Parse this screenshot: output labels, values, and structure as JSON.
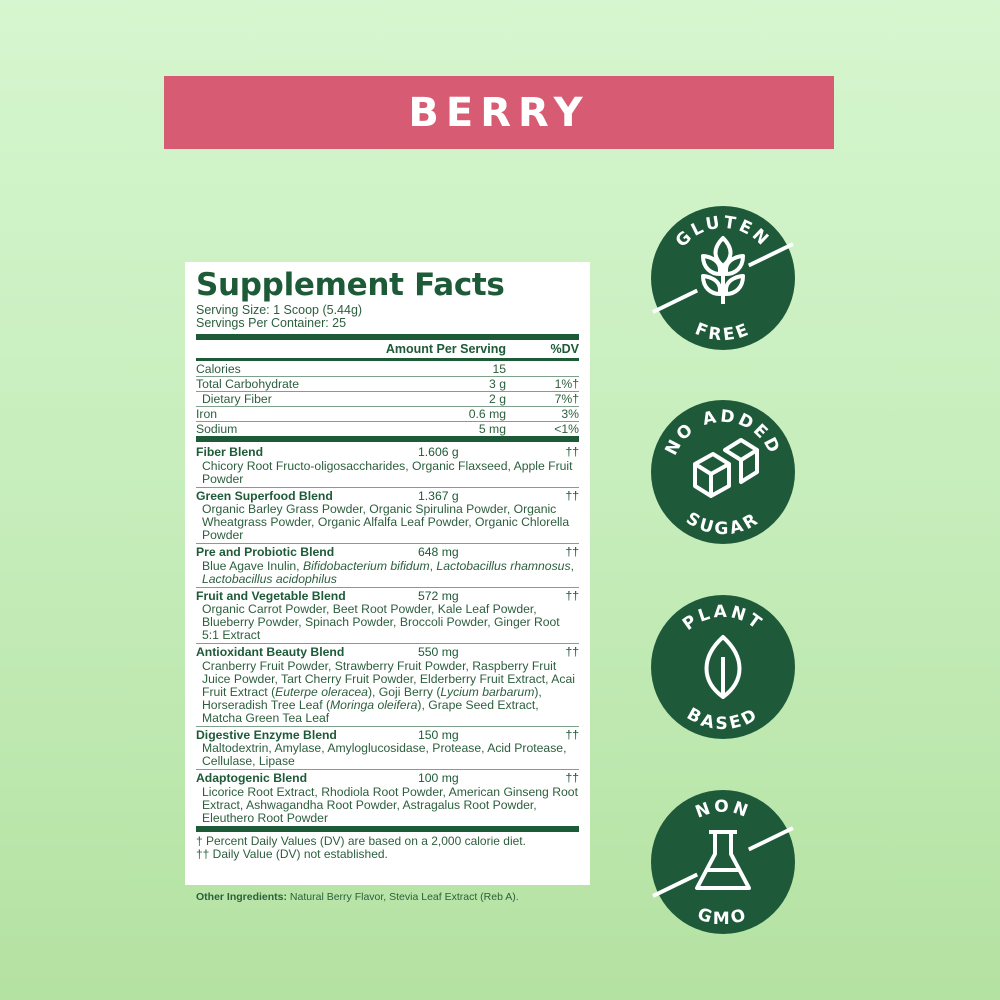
{
  "banner": {
    "flavor": "BERRY",
    "color": "#d75b72"
  },
  "facts": {
    "title": "Supplement Facts",
    "serving_size": "Serving Size: 1 Scoop (5.44g)",
    "servings_per_container": "Servings Per Container: 25",
    "header_amount": "Amount Per Serving",
    "header_dv": "%DV",
    "nutrients": [
      {
        "name": "Calories",
        "amount": "15",
        "dv": ""
      },
      {
        "name": "Total Carbohydrate",
        "amount": "3 g",
        "dv": "1%†"
      },
      {
        "name": "Dietary Fiber",
        "amount": "2 g",
        "dv": "7%†"
      },
      {
        "name": "Iron",
        "amount": "0.6 mg",
        "dv": "3%"
      },
      {
        "name": "Sodium",
        "amount": "5 mg",
        "dv": "<1%"
      }
    ],
    "blends": [
      {
        "name": "Fiber Blend",
        "amount": "1.606 g",
        "dv": "††",
        "ingredients": "Chicory Root Fructo-oligosaccharides, Organic Flaxseed, Apple Fruit Powder"
      },
      {
        "name": "Green Superfood Blend",
        "amount": "1.367 g",
        "dv": "††",
        "ingredients": "Organic Barley Grass Powder, Organic Spirulina Powder, Organic Wheatgrass Powder, Organic Alfalfa Leaf Powder, Organic Chlorella Powder"
      },
      {
        "name": "Pre and Probiotic Blend",
        "amount": "648 mg",
        "dv": "††",
        "ingredients": "Blue Agave Inulin, Bifidobacterium bifidum, Lactobacillus rhamnosus, Lactobacillus acidophilus"
      },
      {
        "name": "Fruit and Vegetable Blend",
        "amount": "572 mg",
        "dv": "††",
        "ingredients": "Organic Carrot Powder, Beet Root Powder, Kale Leaf Powder, Blueberry Powder, Spinach Powder, Broccoli Powder, Ginger Root 5:1 Extract"
      },
      {
        "name": "Antioxidant Beauty Blend",
        "amount": "550 mg",
        "dv": "††",
        "ingredients": "Cranberry Fruit Powder, Strawberry Fruit Powder, Raspberry Fruit Juice Powder, Tart Cherry Fruit Powder, Elderberry Fruit Extract, Acai Fruit Extract (Euterpe oleracea), Goji Berry (Lycium barbarum), Horseradish Tree Leaf (Moringa oleifera), Grape Seed Extract, Matcha Green Tea Leaf"
      },
      {
        "name": "Digestive Enzyme Blend",
        "amount": "150 mg",
        "dv": "††",
        "ingredients": "Maltodextrin, Amylase, Amyloglucosidase, Protease, Acid Protease, Cellulase, Lipase"
      },
      {
        "name": "Adaptogenic Blend",
        "amount": "100 mg",
        "dv": "††",
        "ingredients": "Licorice Root Extract, Rhodiola Root Powder, American Ginseng Root Extract, Ashwagandha Root Powder, Astragalus Root Powder, Eleuthero Root Powder"
      }
    ],
    "footnote1": "† Percent Daily Values (DV) are based on a 2,000 calorie diet.",
    "footnote2": "†† Daily Value (DV) not established."
  },
  "other_ingredients": {
    "label": "Other Ingredients:",
    "text": " Natural Berry Flavor, Stevia Leaf Extract (Reb A)."
  },
  "badges": [
    {
      "top": "GLUTEN",
      "bottom": "FREE",
      "icon": "wheat-icon"
    },
    {
      "top": "NO ADDED",
      "bottom": "SUGAR",
      "icon": "sugar-cubes-icon"
    },
    {
      "top": "PLANT",
      "bottom": "BASED",
      "icon": "leaf-icon"
    },
    {
      "top": "NON",
      "bottom": "GMO",
      "icon": "flask-icon"
    }
  ],
  "colors": {
    "badge": "#1e5a3a",
    "text": "#1d5a37",
    "background": "#c6edbb"
  }
}
